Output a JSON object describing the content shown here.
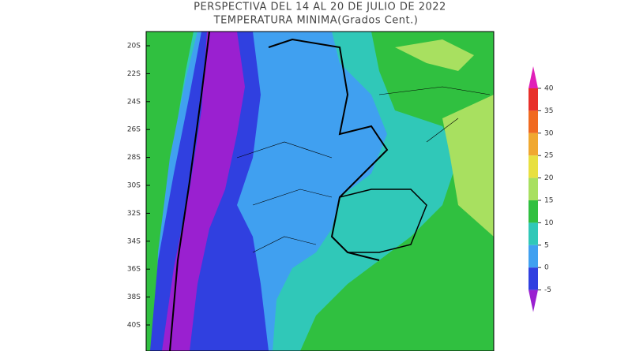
{
  "title": "PERSPECTIVA DEL 14 AL 20 DE JULIO DE 2022",
  "subtitle": "TEMPERATURA MINIMA(Grados Cent.)",
  "lat_labels": [
    "20S",
    "22S",
    "24S",
    "26S",
    "28S",
    "30S",
    "32S",
    "34S",
    "36S",
    "38S",
    "40S"
  ],
  "colorbar": {
    "ticks": [
      40,
      35,
      30,
      25,
      20,
      15,
      10,
      5,
      0,
      -5
    ],
    "over_color": "#e020b8",
    "colors": [
      "#e8302a",
      "#f06a20",
      "#f0a830",
      "#e8e040",
      "#a8e060",
      "#30c040",
      "#30c8b8",
      "#40a0f0",
      "#3040e0"
    ],
    "under_color": "#9a20d0"
  }
}
